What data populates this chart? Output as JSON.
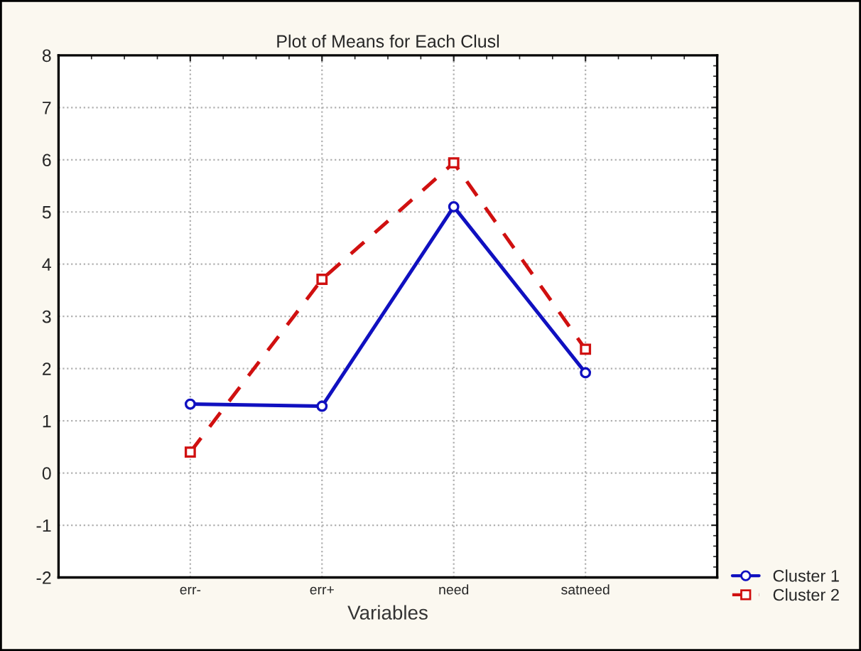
{
  "chart_data": {
    "type": "line",
    "title": "Plot of Means for Each Clusl",
    "xlabel": "Variables",
    "categories": [
      "err-",
      "err+",
      "need",
      "satneed"
    ],
    "series": [
      {
        "name": "Cluster 1",
        "color": "#1010c0",
        "values": [
          1.32,
          1.28,
          5.1,
          1.92
        ],
        "marker": "circle",
        "line_style": "solid"
      },
      {
        "name": "Cluster 2",
        "color": "#d01010",
        "values": [
          0.4,
          3.71,
          5.94,
          2.37
        ],
        "marker": "square",
        "line_style": "dashed"
      }
    ],
    "ylim": [
      -2,
      8
    ],
    "yticks": [
      -2,
      -1,
      0,
      1,
      2,
      3,
      4,
      5,
      6,
      7,
      8
    ],
    "grid": true,
    "legend": "bottom right"
  }
}
